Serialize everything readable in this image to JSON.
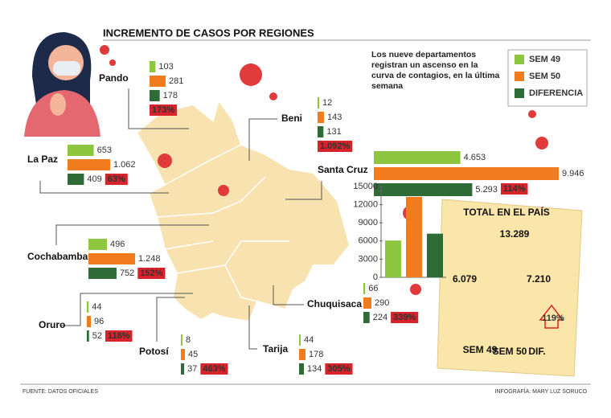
{
  "title": "INCREMENTO DE CASOS POR REGIONES",
  "intro": "Los nueve departamentos registran un ascenso en la curva de contagios, en la última semana",
  "legend": [
    "SEM 49",
    "SEM 50",
    "DIFERENCIA"
  ],
  "colors": [
    "#8dc63f",
    "#f07c1e",
    "#2e6b36"
  ],
  "change_color": "#d7232b",
  "regions": [
    {
      "name": "Pando",
      "values": [
        103,
        281,
        178
      ],
      "change": 173,
      "change_label": "173%"
    },
    {
      "name": "Beni",
      "values": [
        12,
        143,
        131
      ],
      "change": 1092,
      "change_label": "1.092%"
    },
    {
      "name": "La Paz",
      "values": [
        653,
        1062,
        409
      ],
      "value_labels": [
        "653",
        "1.062",
        "409"
      ],
      "change": 63,
      "change_label": "63%"
    },
    {
      "name": "Santa Cruz",
      "values": [
        4653,
        9946,
        5293
      ],
      "value_labels": [
        "4.653",
        "9.946",
        "5.293"
      ],
      "change": 114,
      "change_label": "114%"
    },
    {
      "name": "Cochabamba",
      "values": [
        496,
        1248,
        752
      ],
      "value_labels": [
        "496",
        "1.248",
        "752"
      ],
      "change": 152,
      "change_label": "152%"
    },
    {
      "name": "Oruro",
      "values": [
        44,
        96,
        52
      ],
      "change": 118,
      "change_label": "118%"
    },
    {
      "name": "Potosí",
      "values": [
        8,
        45,
        37
      ],
      "change": 463,
      "change_label": "463%"
    },
    {
      "name": "Tarija",
      "values": [
        44,
        178,
        134
      ],
      "change": 305,
      "change_label": "305%"
    },
    {
      "name": "Chuquisaca",
      "values": [
        66,
        290,
        224
      ],
      "change": 339,
      "change_label": "339%"
    }
  ],
  "total": {
    "title": "TOTAL EN EL PAÍS",
    "values": [
      6079,
      13289,
      7210
    ],
    "value_labels": [
      "6.079",
      "13.289",
      "7.210"
    ],
    "categories": [
      "SEM 49",
      "SEM 50",
      "DIF."
    ],
    "change": 119,
    "change_label": "119%",
    "ylim": [
      0,
      15000
    ],
    "yticks": [
      0,
      3000,
      6000,
      9000,
      12000,
      15000
    ]
  },
  "source": "FUENTE: DATOS OFICIALES",
  "credit": "INFOGRAFÍA: MARY LUZ SORUCO"
}
